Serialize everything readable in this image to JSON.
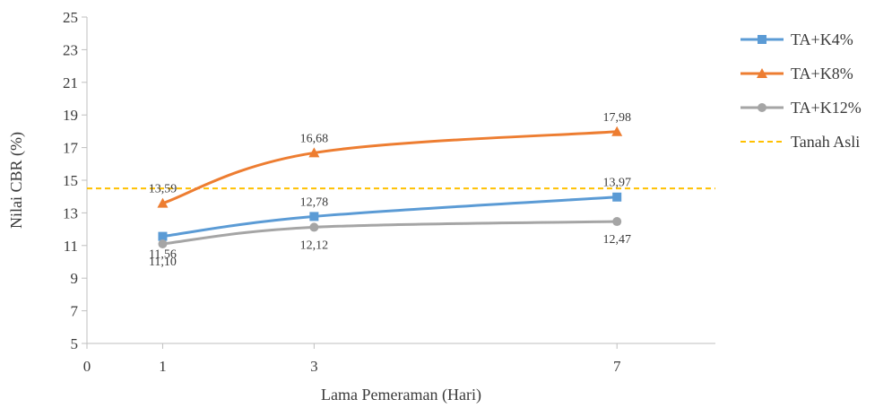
{
  "chart_data": {
    "type": "line",
    "title": "",
    "xlabel": "Lama Pemeraman (Hari)",
    "ylabel": "Nilai CBR (%)",
    "xlim": [
      0,
      8.3
    ],
    "ylim": [
      5,
      25
    ],
    "xticks": [
      "0",
      "1",
      "3",
      "7"
    ],
    "yticks": [
      "5",
      "7",
      "9",
      "11",
      "13",
      "15",
      "17",
      "19",
      "21",
      "23",
      "25"
    ],
    "grid": false,
    "legend": "right",
    "series": [
      {
        "name": "TA+K4%",
        "color": "#5b9bd5",
        "marker": "square",
        "x": [
          1,
          3,
          7
        ],
        "y": [
          11.56,
          12.78,
          13.97
        ],
        "labels": [
          "11,56",
          "12,78",
          "13,97"
        ]
      },
      {
        "name": "TA+K8%",
        "color": "#ed7d31",
        "marker": "triangle",
        "x": [
          1,
          3,
          7
        ],
        "y": [
          13.59,
          16.68,
          17.98
        ],
        "labels": [
          "13,59",
          "16,68",
          "17,98"
        ]
      },
      {
        "name": "TA+K12%",
        "color": "#a5a5a5",
        "marker": "circle",
        "x": [
          1,
          3,
          7
        ],
        "y": [
          11.1,
          12.12,
          12.47
        ],
        "labels": [
          "11,10",
          "12,12",
          "12,47"
        ]
      }
    ],
    "reference_lines": [
      {
        "name": "Tanah Asli",
        "color": "#ffc000",
        "style": "dashed",
        "y": 14.5
      }
    ]
  }
}
